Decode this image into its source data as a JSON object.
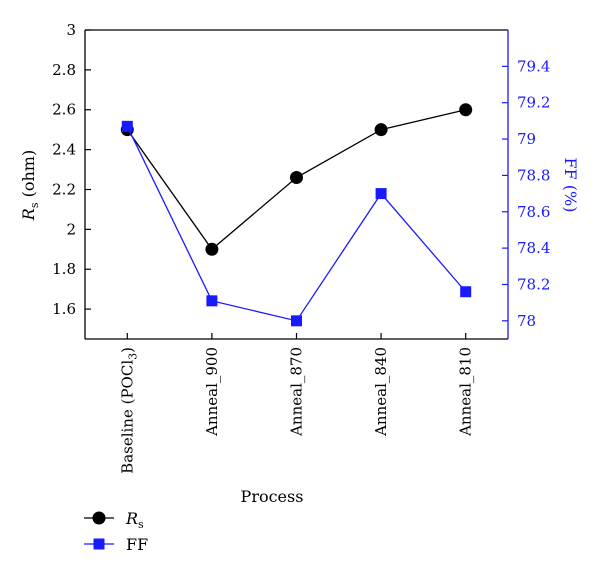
{
  "chart_data": {
    "type": "line",
    "categories": [
      "Baseline (POCl3)",
      "Anneal_900",
      "Anneal_870",
      "Anneal_840",
      "Anneal_810"
    ],
    "categories_display": [
      {
        "text": "Baseline (POCl",
        "sub": "3",
        "tail": ")"
      },
      {
        "text": "Anneal_900",
        "sub": "",
        "tail": ""
      },
      {
        "text": "Anneal_870",
        "sub": "",
        "tail": ""
      },
      {
        "text": "Anneal_840",
        "sub": "",
        "tail": ""
      },
      {
        "text": "Anneal_810",
        "sub": "",
        "tail": ""
      }
    ],
    "series": [
      {
        "name": "Rs",
        "legend_main": "R",
        "legend_sub": "s",
        "axis": "left",
        "marker": "circle",
        "color": "#000000",
        "values": [
          2.5,
          1.9,
          2.26,
          2.5,
          2.6
        ]
      },
      {
        "name": "FF",
        "legend_main": "FF",
        "legend_sub": "",
        "axis": "right",
        "marker": "square",
        "color": "#1a1aff",
        "values": [
          79.07,
          78.11,
          78.0,
          78.7,
          78.16
        ]
      }
    ],
    "xlabel": "Process",
    "ylabel_left": {
      "main": "R",
      "sub": "s",
      "rest": " (ohm)"
    },
    "ylabel_right": "FF (%)",
    "ylim_left": [
      1.45,
      3.0
    ],
    "ylim_right": [
      77.9,
      79.6
    ],
    "yticks_left": [
      "1.6",
      "1.8",
      "2",
      "2.2",
      "2.4",
      "2.6",
      "2.8",
      "3"
    ],
    "yticks_right": [
      "78",
      "78.2",
      "78.4",
      "78.6",
      "78.8",
      "79",
      "79.2",
      "79.4"
    ],
    "legend_position": "bottom-left",
    "grid": false,
    "colors": {
      "left_axis": "#000000",
      "right_axis": "#1a1aff"
    }
  }
}
